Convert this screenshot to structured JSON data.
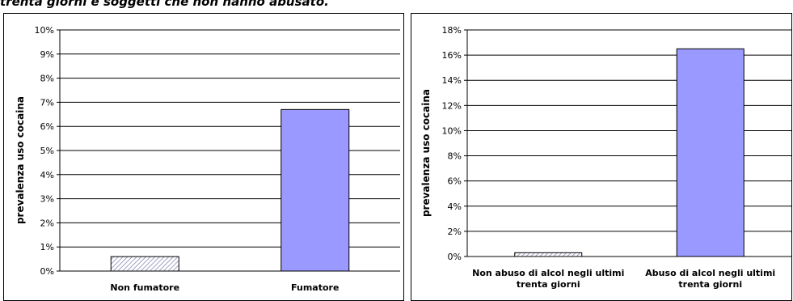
{
  "heading": "trenta giorni e soggetti che non hanno abusato.",
  "colors": {
    "plot_fill": "#9999ff",
    "hatch": "#8a8ab8",
    "grid": "#000000"
  },
  "chart_data": [
    {
      "type": "bar",
      "title": "",
      "ylabel": "prevalenza uso cocaina",
      "xlabel": "",
      "categories": [
        [
          "Non fumatore"
        ],
        [
          "Fumatore"
        ]
      ],
      "values": [
        0.6,
        6.7
      ],
      "bar_styles": [
        "hatched",
        "solid"
      ],
      "ylim": [
        0,
        10
      ],
      "yticks": [
        "0%",
        "1%",
        "2%",
        "3%",
        "4%",
        "5%",
        "6%",
        "7%",
        "8%",
        "9%",
        "10%"
      ],
      "grid": true,
      "unit": "%"
    },
    {
      "type": "bar",
      "title": "",
      "ylabel": "prevalenza uso cocaina",
      "xlabel": "",
      "categories": [
        [
          "Non abuso di alcol negli ultimi",
          "trenta giorni"
        ],
        [
          "Abuso di alcol negli ultimi",
          "trenta giorni"
        ]
      ],
      "values": [
        0.3,
        16.5
      ],
      "bar_styles": [
        "hatched",
        "solid"
      ],
      "ylim": [
        0,
        18
      ],
      "yticks": [
        "0%",
        "2%",
        "4%",
        "6%",
        "8%",
        "10%",
        "12%",
        "14%",
        "16%",
        "18%"
      ],
      "grid": true,
      "unit": "%"
    }
  ]
}
